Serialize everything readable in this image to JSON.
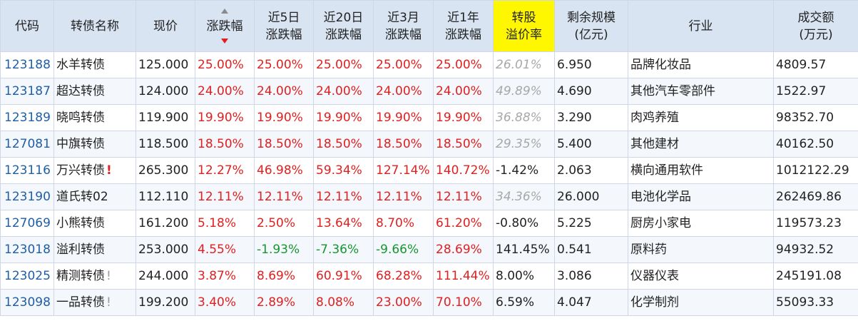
{
  "headers": {
    "code": "代码",
    "name": "转债名称",
    "price": "现价",
    "change": "涨跌幅",
    "chg5d_l1": "近5日",
    "chg5d_l2": "涨跌幅",
    "chg20d_l1": "近20日",
    "chg20d_l2": "涨跌幅",
    "chg3m_l1": "近3月",
    "chg3m_l2": "涨跌幅",
    "chg1y_l1": "近1年",
    "chg1y_l2": "涨跌幅",
    "premium_l1": "转股",
    "premium_l2": "溢价率",
    "remain_l1": "剩余规模",
    "remain_l2": "(亿元)",
    "industry": "行业",
    "volume_l1": "成交额",
    "volume_l2": "(万元)"
  },
  "sort": {
    "column": "change",
    "direction": "desc"
  },
  "colors": {
    "up": "#e02020",
    "down": "#16962e",
    "code": "#1f5ea8",
    "header_bg": "#d8e4f2",
    "highlight": "#fff700"
  },
  "rows": [
    {
      "code": "123188",
      "name": "水羊转债",
      "flag": "",
      "price": "125.000",
      "change": "25.00%",
      "chg5d": "25.00%",
      "chg20d": "25.00%",
      "chg3m": "25.00%",
      "chg1y": "25.00%",
      "premium": "26.01%",
      "remain": "6.950",
      "industry": "品牌化妆品",
      "volume": "4809.57"
    },
    {
      "code": "123187",
      "name": "超达转债",
      "flag": "",
      "price": "124.000",
      "change": "24.00%",
      "chg5d": "24.00%",
      "chg20d": "24.00%",
      "chg3m": "24.00%",
      "chg1y": "24.00%",
      "premium": "49.89%",
      "remain": "4.690",
      "industry": "其他汽车零部件",
      "volume": "1522.97"
    },
    {
      "code": "123189",
      "name": "晓鸣转债",
      "flag": "",
      "price": "119.900",
      "change": "19.90%",
      "chg5d": "19.90%",
      "chg20d": "19.90%",
      "chg3m": "19.90%",
      "chg1y": "19.90%",
      "premium": "36.88%",
      "remain": "3.290",
      "industry": "肉鸡养殖",
      "volume": "98352.70"
    },
    {
      "code": "127081",
      "name": "中旗转债",
      "flag": "",
      "price": "118.500",
      "change": "18.50%",
      "chg5d": "18.50%",
      "chg20d": "18.50%",
      "chg3m": "18.50%",
      "chg1y": "18.50%",
      "premium": "29.35%",
      "remain": "5.400",
      "industry": "其他建材",
      "volume": "40162.50"
    },
    {
      "code": "123116",
      "name": "万兴转债",
      "flag": "!",
      "price": "265.300",
      "change": "12.27%",
      "chg5d": "46.98%",
      "chg20d": "59.34%",
      "chg3m": "127.14%",
      "chg1y": "140.72%",
      "premium": "-1.42%",
      "remain": "2.063",
      "industry": "横向通用软件",
      "volume": "1012122.29"
    },
    {
      "code": "123190",
      "name": "道氏转02",
      "flag": "",
      "price": "112.110",
      "change": "12.11%",
      "chg5d": "12.11%",
      "chg20d": "12.11%",
      "chg3m": "12.11%",
      "chg1y": "12.11%",
      "premium": "34.36%",
      "remain": "26.000",
      "industry": "电池化学品",
      "volume": "262469.86"
    },
    {
      "code": "127069",
      "name": "小熊转债",
      "flag": "",
      "price": "161.200",
      "change": "5.18%",
      "chg5d": "2.50%",
      "chg20d": "13.64%",
      "chg3m": "8.70%",
      "chg1y": "61.20%",
      "premium": "-0.80%",
      "remain": "5.225",
      "industry": "厨房小家电",
      "volume": "119573.23"
    },
    {
      "code": "123018",
      "name": "溢利转债",
      "flag": "",
      "price": "253.000",
      "change": "4.55%",
      "chg5d": "-1.93%",
      "chg20d": "-7.36%",
      "chg3m": "-9.66%",
      "chg1y": "28.69%",
      "premium": "141.45%",
      "remain": "0.541",
      "industry": "原料药",
      "volume": "94932.52"
    },
    {
      "code": "123025",
      "name": "精测转债",
      "flag": "!",
      "price": "244.000",
      "change": "3.87%",
      "chg5d": "8.69%",
      "chg20d": "60.91%",
      "chg3m": "68.28%",
      "chg1y": "111.44%",
      "premium": "8.00%",
      "remain": "3.086",
      "industry": "仪器仪表",
      "volume": "245191.08"
    },
    {
      "code": "123098",
      "name": "一品转债",
      "flag": "!",
      "price": "199.200",
      "change": "3.40%",
      "chg5d": "2.89%",
      "chg20d": "8.08%",
      "chg3m": "23.00%",
      "chg1y": "70.10%",
      "premium": "6.59%",
      "remain": "4.047",
      "industry": "化学制剂",
      "volume": "55093.33"
    }
  ]
}
